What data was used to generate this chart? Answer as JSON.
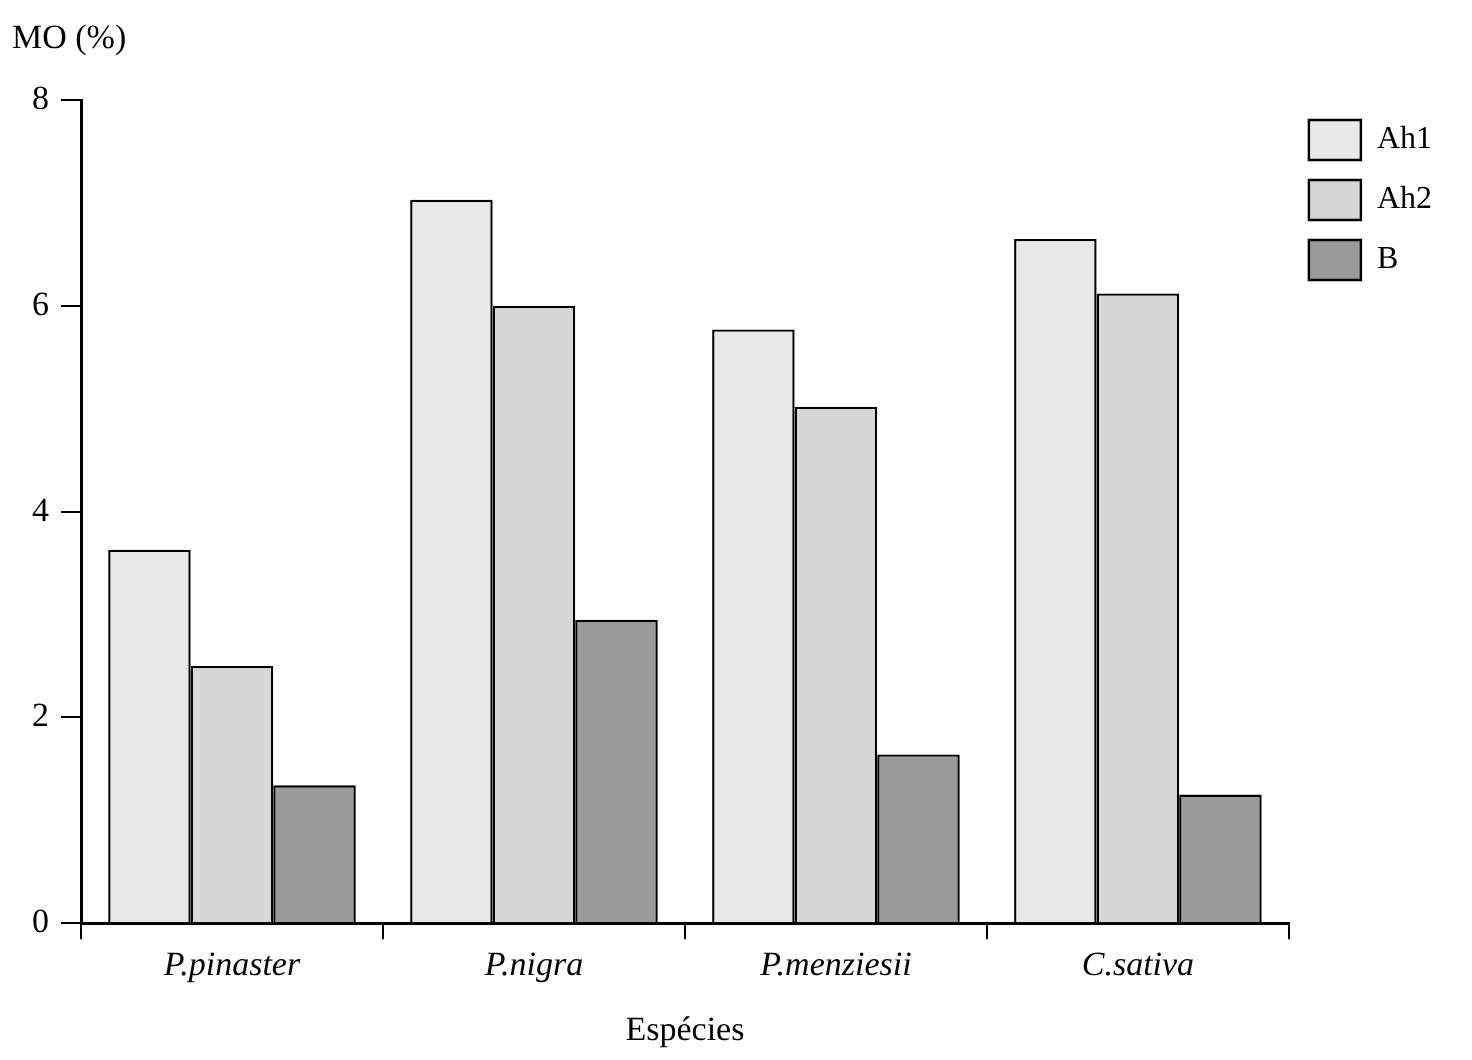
{
  "chart_data": {
    "type": "bar",
    "ylabel": "MO (%)",
    "xlabel": "Espécies",
    "categories": [
      "P.pinaster",
      "P.nigra",
      "P.menziesii",
      "C.sativa"
    ],
    "series": [
      {
        "name": "Ah1",
        "color": "#e8e8e8",
        "values": [
          3.63,
          7.03,
          5.77,
          6.65
        ]
      },
      {
        "name": "Ah2",
        "color": "#d6d6d6",
        "values": [
          2.5,
          6.0,
          5.02,
          6.12
        ]
      },
      {
        "name": "B",
        "color": "#9a9a9a",
        "values": [
          1.34,
          2.95,
          1.64,
          1.25
        ]
      }
    ],
    "ylim": [
      0,
      8
    ],
    "yticks": [
      0,
      2,
      4,
      6,
      8
    ],
    "grid": false,
    "legend": "top right"
  }
}
